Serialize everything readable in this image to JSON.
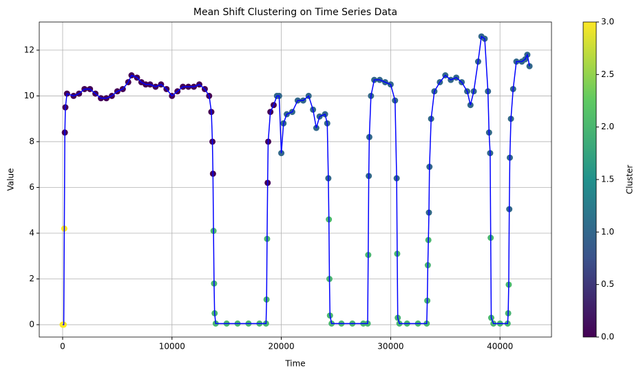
{
  "chart_data": {
    "type": "scatter",
    "title": "Mean Shift Clustering on Time Series Data",
    "x_label": "Time",
    "y_label": "Value",
    "colorbar_label": "Cluster",
    "x": [
      0,
      100,
      150,
      200,
      250,
      400,
      1000,
      1500,
      2000,
      2500,
      3000,
      3500,
      4000,
      4500,
      5000,
      5500,
      6000,
      6300,
      6800,
      7200,
      7600,
      8000,
      8500,
      9000,
      9500,
      10000,
      10500,
      11000,
      11500,
      12000,
      12500,
      13000,
      13400,
      13600,
      13700,
      13750,
      13800,
      13850,
      13900,
      14000,
      15000,
      16000,
      17000,
      18000,
      18600,
      18650,
      18700,
      18750,
      18800,
      19000,
      19300,
      19600,
      19800,
      20000,
      20200,
      20500,
      21000,
      21500,
      22000,
      22500,
      22900,
      23200,
      23500,
      24000,
      24200,
      24300,
      24350,
      24400,
      24450,
      24600,
      25500,
      26500,
      27500,
      27900,
      27950,
      28000,
      28050,
      28200,
      28500,
      29000,
      29500,
      30000,
      30400,
      30550,
      30600,
      30650,
      30800,
      31500,
      32500,
      33300,
      33350,
      33400,
      33450,
      33500,
      33550,
      33700,
      34000,
      34500,
      35000,
      35500,
      36000,
      36500,
      37000,
      37300,
      37600,
      38000,
      38300,
      38600,
      38900,
      39000,
      39100,
      39150,
      39200,
      39400,
      40000,
      40700,
      40750,
      40800,
      40850,
      40900,
      41000,
      41200,
      41500,
      42000,
      42300,
      42500,
      42700
    ],
    "values": [
      0,
      0,
      4.2,
      8.4,
      9.5,
      10.1,
      10.0,
      10.1,
      10.3,
      10.3,
      10.1,
      9.9,
      9.9,
      10.0,
      10.2,
      10.3,
      10.6,
      10.9,
      10.8,
      10.6,
      10.5,
      10.5,
      10.4,
      10.5,
      10.3,
      10.0,
      10.2,
      10.4,
      10.4,
      10.4,
      10.5,
      10.3,
      10.0,
      9.3,
      8.0,
      6.6,
      4.1,
      1.8,
      0.5,
      0.05,
      0.05,
      0.05,
      0.05,
      0.05,
      0.05,
      1.1,
      3.75,
      6.2,
      8.0,
      9.3,
      9.6,
      10.0,
      10.0,
      7.5,
      8.8,
      9.2,
      9.3,
      9.8,
      9.8,
      10.0,
      9.4,
      8.6,
      9.1,
      9.2,
      8.8,
      6.4,
      4.6,
      2.0,
      0.4,
      0.05,
      0.05,
      0.05,
      0.05,
      0.05,
      3.05,
      6.5,
      8.2,
      10.0,
      10.7,
      10.7,
      10.6,
      10.5,
      9.8,
      6.4,
      3.1,
      0.3,
      0.05,
      0.05,
      0.05,
      0.05,
      1.05,
      2.6,
      3.7,
      4.9,
      6.9,
      9.0,
      10.2,
      10.6,
      10.9,
      10.7,
      10.8,
      10.6,
      10.2,
      9.6,
      10.2,
      11.5,
      12.6,
      12.5,
      10.2,
      8.4,
      7.5,
      3.8,
      0.3,
      0.05,
      0.05,
      0.05,
      0.5,
      1.75,
      5.05,
      7.3,
      9.0,
      10.3,
      11.5,
      11.5,
      11.6,
      11.8,
      11.3
    ],
    "cluster": [
      3,
      3,
      3,
      0,
      0,
      0,
      0,
      0,
      0,
      0,
      0,
      0,
      0,
      0,
      0,
      0,
      0,
      0,
      0,
      0,
      0,
      0,
      0,
      0,
      0,
      0,
      0,
      0,
      0,
      0,
      0,
      0,
      0,
      0,
      0,
      0,
      2,
      2,
      2,
      2,
      2,
      2,
      2,
      2,
      2,
      2,
      2,
      0,
      0,
      0,
      0,
      1,
      1,
      1,
      1,
      1,
      1,
      1,
      1,
      1,
      1,
      1,
      1,
      1,
      1,
      1,
      2,
      2,
      2,
      2,
      2,
      2,
      2,
      2,
      2,
      1,
      1,
      1,
      1,
      1,
      1,
      1,
      1,
      1,
      2,
      2,
      2,
      2,
      2,
      2,
      2,
      2,
      2,
      1,
      1,
      1,
      1,
      1,
      1,
      1,
      1,
      1,
      1,
      1,
      1,
      1,
      1,
      1,
      1,
      1,
      1,
      2,
      2,
      2,
      2,
      2,
      2,
      2,
      1,
      1,
      1,
      1,
      1,
      1,
      1,
      1,
      1
    ],
    "line_color": "#0000ff",
    "colormap": [
      "#440154",
      "#3b528b",
      "#21918c",
      "#5ec962",
      "#fde725"
    ],
    "clim": [
      0,
      3
    ],
    "colorbar_ticks": [
      {
        "value": 0,
        "label": "0.0"
      },
      {
        "value": 0.5,
        "label": "0.5"
      },
      {
        "value": 1,
        "label": "1.0"
      },
      {
        "value": 1.5,
        "label": "1.5"
      },
      {
        "value": 2,
        "label": "2.0"
      },
      {
        "value": 2.5,
        "label": "2.5"
      },
      {
        "value": 3,
        "label": "3.0"
      }
    ],
    "xlim": [
      -2140,
      44710
    ],
    "xticks": [
      0,
      10000,
      20000,
      30000,
      40000
    ],
    "ylim": [
      -0.54,
      13.23
    ],
    "yticks": [
      0,
      2,
      4,
      6,
      8,
      10,
      12
    ],
    "grid": true
  }
}
